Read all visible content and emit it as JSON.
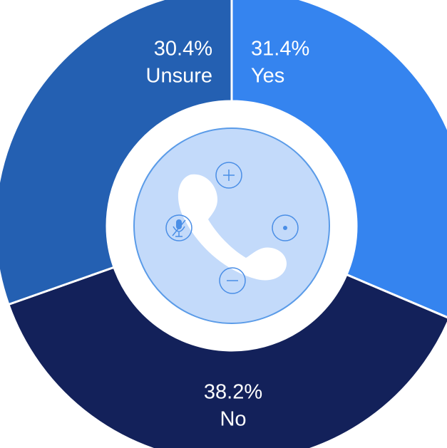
{
  "chart_data": {
    "type": "donut",
    "categories": [
      "Yes",
      "No",
      "Unsure"
    ],
    "values": [
      31.4,
      38.2,
      30.4
    ],
    "value_labels": [
      "31.4%",
      "38.2%",
      "30.4%"
    ],
    "colors": [
      "#3584ef",
      "#13215a",
      "#2460b2"
    ]
  }
}
